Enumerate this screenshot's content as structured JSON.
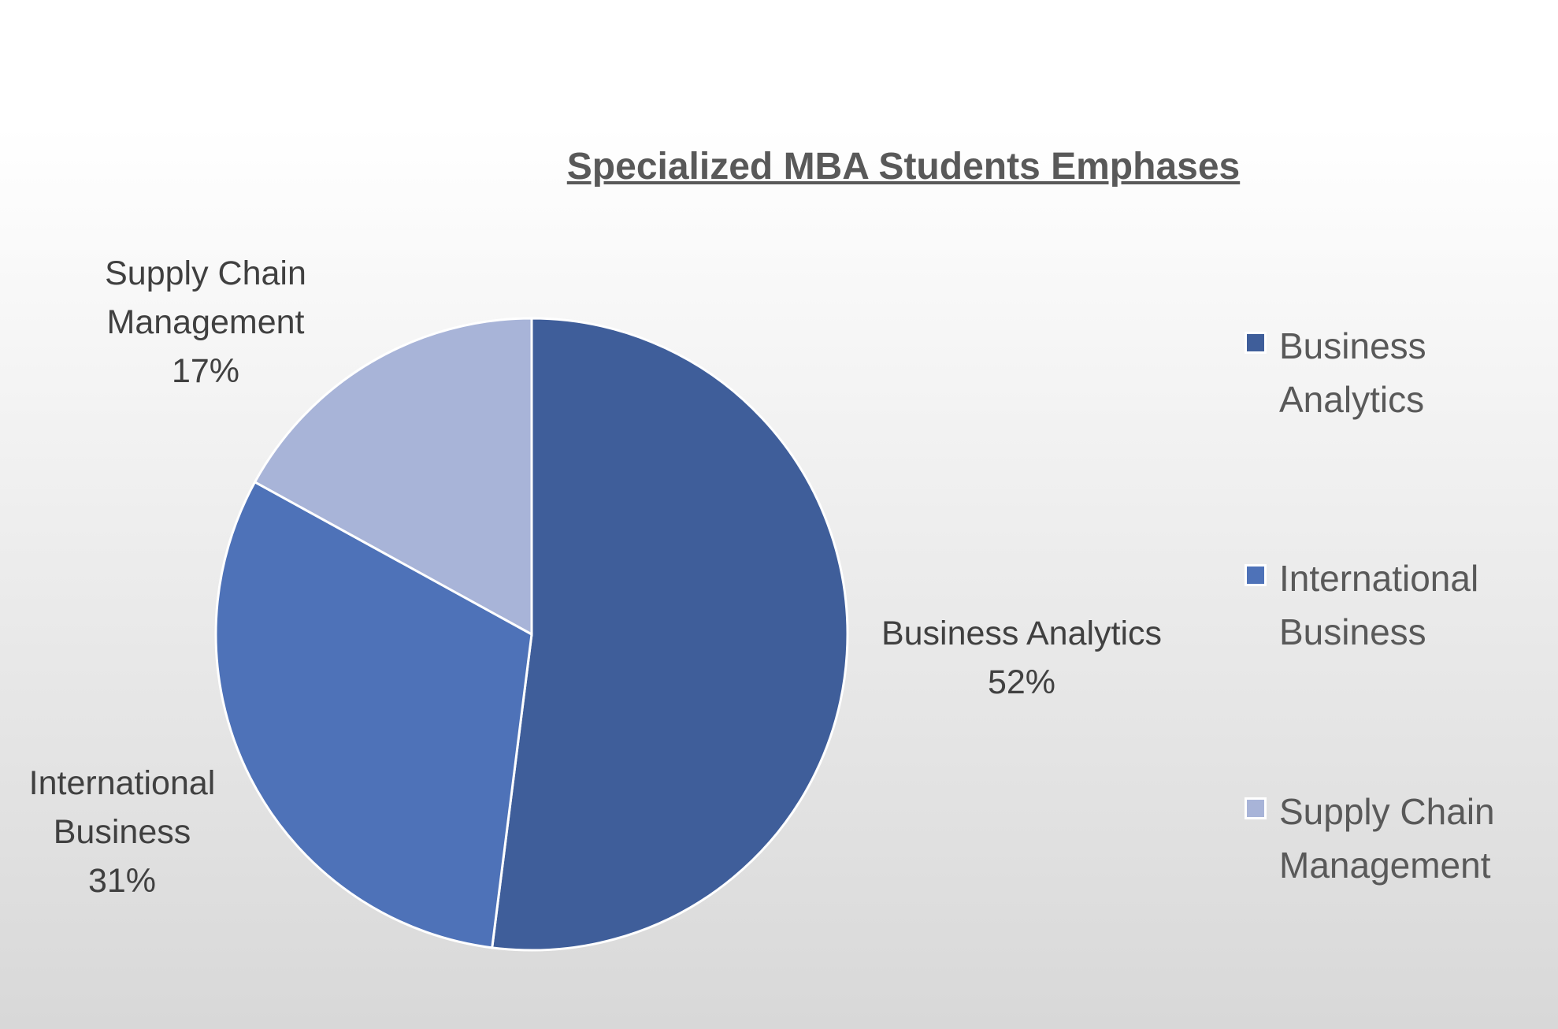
{
  "chart_data": {
    "type": "pie",
    "title": "Specialized MBA Students Emphases",
    "categories": [
      "Business Analytics",
      "International Business",
      "Supply Chain Management"
    ],
    "values": [
      52,
      31,
      17
    ],
    "value_labels": [
      "52%",
      "31%",
      "17%"
    ],
    "colors": [
      "#3f5e9a",
      "#4e72b8",
      "#a8b4d8"
    ],
    "legend": "right"
  }
}
